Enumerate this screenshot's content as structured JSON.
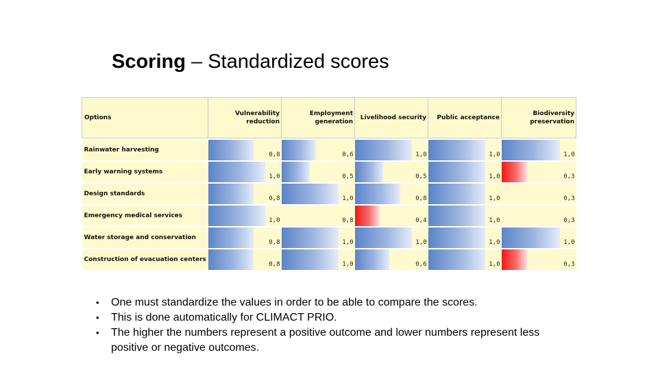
{
  "title": {
    "bold": "Scoring",
    "rest": " – Standardized scores"
  },
  "table": {
    "options_header": "Options",
    "criteria": [
      {
        "line1": "Vulnerability",
        "line2": "reduction"
      },
      {
        "line1": "Employment",
        "line2": "generation"
      },
      {
        "line1": "Livelihood security",
        "line2": ""
      },
      {
        "line1": "Public acceptance",
        "line2": ""
      },
      {
        "line1": "Biodiversity",
        "line2": "preservation"
      }
    ],
    "rows": [
      {
        "option": "Rainwater harvesting",
        "scores": [
          {
            "label": "0,8",
            "value": 0.8,
            "polarity": "pos"
          },
          {
            "label": "0,6",
            "value": 0.6,
            "polarity": "pos"
          },
          {
            "label": "1,0",
            "value": 1.0,
            "polarity": "pos"
          },
          {
            "label": "1,0",
            "value": 1.0,
            "polarity": "pos"
          },
          {
            "label": "1,0",
            "value": 1.0,
            "polarity": "pos"
          }
        ]
      },
      {
        "option": "Early warning systems",
        "scores": [
          {
            "label": "1,0",
            "value": 1.0,
            "polarity": "pos"
          },
          {
            "label": "0,5",
            "value": 0.5,
            "polarity": "pos"
          },
          {
            "label": "0,5",
            "value": 0.5,
            "polarity": "pos"
          },
          {
            "label": "1,0",
            "value": 1.0,
            "polarity": "pos"
          },
          {
            "label": "0,3",
            "value": 0.3,
            "polarity": "neg"
          }
        ]
      },
      {
        "option": "Design standards",
        "scores": [
          {
            "label": "0,8",
            "value": 0.8,
            "polarity": "pos"
          },
          {
            "label": "1,0",
            "value": 1.0,
            "polarity": "pos"
          },
          {
            "label": "0,8",
            "value": 0.8,
            "polarity": "pos"
          },
          {
            "label": "1,0",
            "value": 1.0,
            "polarity": "pos"
          },
          {
            "label": "0,3",
            "value": 0.3,
            "polarity": "none"
          }
        ]
      },
      {
        "option": "Emergency medical services",
        "scores": [
          {
            "label": "1,0",
            "value": 1.0,
            "polarity": "pos"
          },
          {
            "label": "0,8",
            "value": 0.8,
            "polarity": "none"
          },
          {
            "label": "0,4",
            "value": 0.4,
            "polarity": "neg"
          },
          {
            "label": "1,0",
            "value": 1.0,
            "polarity": "pos"
          },
          {
            "label": "0,3",
            "value": 0.3,
            "polarity": "none"
          }
        ]
      },
      {
        "option": "Water storage and conservation",
        "scores": [
          {
            "label": "0,8",
            "value": 0.8,
            "polarity": "pos"
          },
          {
            "label": "1,0",
            "value": 1.0,
            "polarity": "pos"
          },
          {
            "label": "1,0",
            "value": 1.0,
            "polarity": "pos"
          },
          {
            "label": "1,0",
            "value": 1.0,
            "polarity": "pos"
          },
          {
            "label": "1,0",
            "value": 1.0,
            "polarity": "pos"
          }
        ]
      },
      {
        "option": "Construction of evacuation centers",
        "scores": [
          {
            "label": "0,8",
            "value": 0.8,
            "polarity": "pos"
          },
          {
            "label": "1,0",
            "value": 1.0,
            "polarity": "pos"
          },
          {
            "label": "0,6",
            "value": 0.6,
            "polarity": "pos"
          },
          {
            "label": "1,0",
            "value": 1.0,
            "polarity": "pos"
          },
          {
            "label": "0,3",
            "value": 0.3,
            "polarity": "neg"
          }
        ]
      }
    ]
  },
  "bullets": [
    "One must standardize the values in order to be able to compare the scores.",
    "This is done automatically for CLIMACT PRIO.",
    "The higher the numbers represent a positive outcome and lower numbers represent less positive or negative outcomes."
  ],
  "colors": {
    "header_bg": "#fffacd",
    "positive_bar": "#5b84c9",
    "negative_bar": "#f01818"
  }
}
